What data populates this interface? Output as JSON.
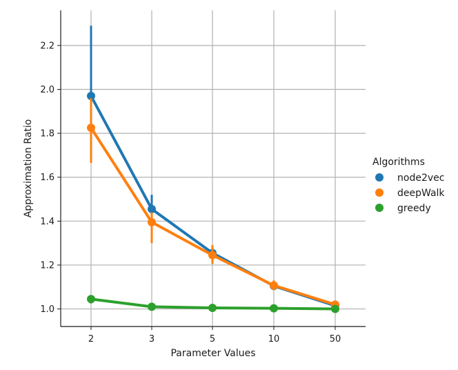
{
  "chart_data": {
    "type": "line",
    "categories": [
      "2",
      "3",
      "5",
      "10",
      "50"
    ],
    "xlabel": "Parameter Values",
    "ylabel": "Approximation Ratio",
    "ylim": [
      0.92,
      2.36
    ],
    "yticks": [
      1.0,
      1.2,
      1.4,
      1.6,
      1.8,
      2.0,
      2.2
    ],
    "ytick_labels": [
      "1.0",
      "1.2",
      "1.4",
      "1.6",
      "1.8",
      "2.0",
      "2.2"
    ],
    "grid": true,
    "legend": {
      "title": "Algorithms",
      "placement": "right"
    },
    "series": [
      {
        "name": "node2vec",
        "color": "#1f77b4",
        "values": [
          1.97,
          1.455,
          1.255,
          1.105,
          1.015
        ],
        "error_low": [
          1.7,
          1.39,
          1.22,
          1.085,
          1.01
        ],
        "error_high": [
          2.29,
          1.52,
          1.29,
          1.125,
          1.025
        ]
      },
      {
        "name": "deepWalk",
        "color": "#ff7f0e",
        "values": [
          1.825,
          1.395,
          1.245,
          1.107,
          1.02
        ],
        "error_low": [
          1.665,
          1.3,
          1.205,
          1.085,
          1.01
        ],
        "error_high": [
          1.96,
          1.44,
          1.29,
          1.13,
          1.03
        ]
      },
      {
        "name": "greedy",
        "color": "#2ca02c",
        "values": [
          1.045,
          1.01,
          1.005,
          1.003,
          1.0
        ],
        "error_low": [
          1.025,
          1.0,
          0.998,
          0.997,
          0.995
        ],
        "error_high": [
          1.06,
          1.02,
          1.012,
          1.008,
          1.005
        ]
      }
    ]
  }
}
